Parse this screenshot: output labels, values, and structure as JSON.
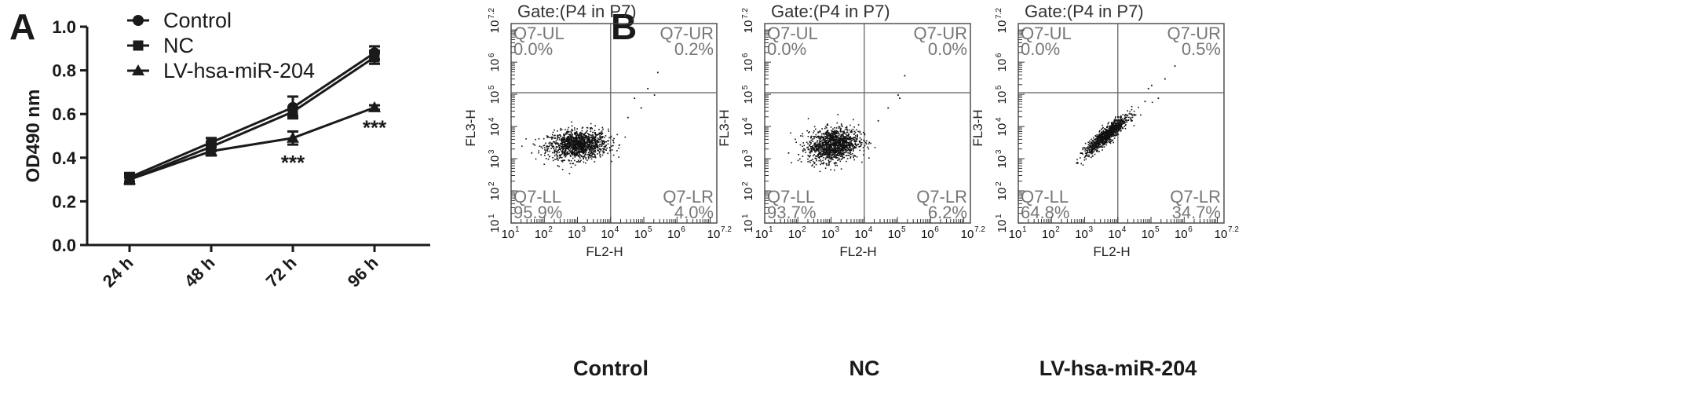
{
  "panels": {
    "a_letter": "A",
    "b_letter": "B"
  },
  "chart_data": [
    {
      "type": "line",
      "ylabel": "OD490 nm",
      "categories": [
        "24 h",
        "48 h",
        "72 h",
        "96 h"
      ],
      "ylim": [
        0.0,
        1.0
      ],
      "yticks": [
        "0.0",
        "0.2",
        "0.4",
        "0.6",
        "0.8",
        "1.0"
      ],
      "series": [
        {
          "name": "Control",
          "marker": "circle",
          "values": [
            0.31,
            0.47,
            0.63,
            0.88
          ],
          "errors": [
            0.02,
            0.02,
            0.05,
            0.03
          ]
        },
        {
          "name": "NC",
          "marker": "square",
          "values": [
            0.3,
            0.45,
            0.61,
            0.86
          ],
          "errors": [
            0.02,
            0.02,
            0.02,
            0.03
          ]
        },
        {
          "name": "LV-hsa-miR-204",
          "marker": "triangle",
          "values": [
            0.3,
            0.43,
            0.49,
            0.63
          ],
          "errors": [
            0.02,
            0.02,
            0.03,
            0.01
          ]
        }
      ],
      "annotations": [
        {
          "category": "72 h",
          "text": "***"
        },
        {
          "category": "96 h",
          "text": "***"
        }
      ]
    },
    {
      "type": "scatter",
      "xlabel": "FL2-H",
      "ylabel": "FL3-H",
      "axis_tick_labels": [
        "10",
        "10",
        "10",
        "10",
        "10",
        "10",
        "10"
      ],
      "axis_tick_exponents": [
        "1",
        "2",
        "3",
        "4",
        "5",
        "6",
        "7.2"
      ],
      "scale": "log",
      "plots": [
        {
          "title": "Gate:(P4 in P7)",
          "caption": "Control",
          "quadrants": [
            {
              "name": "Q7-UL",
              "value": "0.0%"
            },
            {
              "name": "Q7-UR",
              "value": "0.2%"
            },
            {
              "name": "Q7-LL",
              "value": "95.9%"
            },
            {
              "name": "Q7-LR",
              "value": "4.0%"
            }
          ]
        },
        {
          "title": "Gate:(P4 in P7)",
          "caption": "NC",
          "quadrants": [
            {
              "name": "Q7-UL",
              "value": "0.0%"
            },
            {
              "name": "Q7-UR",
              "value": "0.0%"
            },
            {
              "name": "Q7-LL",
              "value": "93.7%"
            },
            {
              "name": "Q7-LR",
              "value": "6.2%"
            }
          ]
        },
        {
          "title": "Gate:(P4 in P7)",
          "caption": "LV-hsa-miR-204",
          "quadrants": [
            {
              "name": "Q7-UL",
              "value": "0.0%"
            },
            {
              "name": "Q7-UR",
              "value": "0.5%"
            },
            {
              "name": "Q7-LL",
              "value": "64.8%"
            },
            {
              "name": "Q7-LR",
              "value": "34.7%"
            }
          ]
        }
      ]
    }
  ]
}
